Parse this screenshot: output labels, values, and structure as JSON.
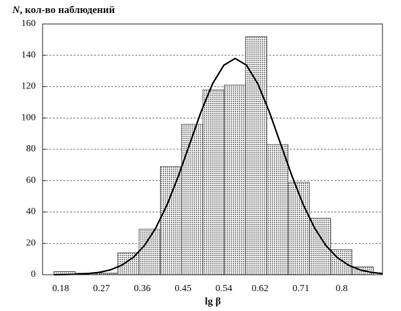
{
  "chart_data": {
    "type": "histogram",
    "y_label_symbol": "N",
    "y_label": ", кол-во наблюдений",
    "x_label": "lg β",
    "bins": [
      0.165,
      0.212,
      0.259,
      0.306,
      0.353,
      0.4,
      0.447,
      0.494,
      0.541,
      0.588,
      0.635,
      0.682,
      0.729,
      0.776,
      0.823,
      0.87
    ],
    "counts": [
      2,
      1,
      1,
      14,
      29,
      69,
      96,
      118,
      121,
      152,
      83,
      59,
      36,
      16,
      5
    ],
    "color": "#c4c4c4",
    "xlim": [
      0.14,
      0.89
    ],
    "xticks": [
      0.18,
      0.27,
      0.36,
      0.45,
      0.54,
      0.62,
      0.71,
      0.8
    ],
    "ylim": [
      0,
      160
    ],
    "yticks": [
      0,
      20,
      40,
      60,
      80,
      100,
      120,
      140,
      160
    ],
    "grid": true,
    "curve": {
      "type": "line",
      "color": "#000000",
      "x": [
        0.165,
        0.19,
        0.215,
        0.24,
        0.265,
        0.29,
        0.315,
        0.34,
        0.365,
        0.39,
        0.415,
        0.44,
        0.465,
        0.49,
        0.515,
        0.54,
        0.565,
        0.59,
        0.615,
        0.64,
        0.665,
        0.69,
        0.715,
        0.74,
        0.765,
        0.79,
        0.815,
        0.84,
        0.865,
        0.89
      ],
      "values": [
        0.0,
        0.1,
        0.3,
        0.7,
        1.5,
        3.1,
        6.1,
        11.0,
        18.7,
        29.9,
        44.8,
        63.2,
        83.7,
        104.2,
        121.8,
        133.7,
        138,
        133.7,
        121.8,
        104.2,
        83.7,
        63.2,
        44.8,
        29.9,
        18.7,
        11.0,
        6.1,
        3.1,
        1.5,
        0.7
      ]
    }
  }
}
